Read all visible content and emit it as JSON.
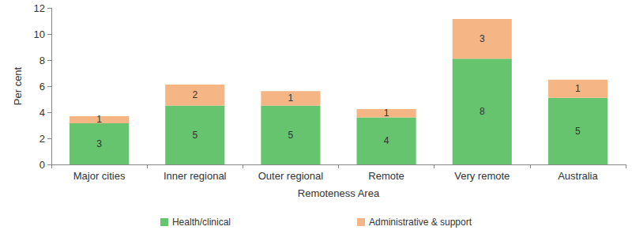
{
  "chart_data": {
    "type": "bar",
    "x_label": "Remoteness Area",
    "y_label": "Per cent",
    "categories": [
      "Major cities",
      "Inner regional",
      "Outer regional",
      "Remote",
      "Very remote",
      "Australia"
    ],
    "series": [
      {
        "name": "Health/clinical",
        "color": "#66c36e",
        "values": [
          3.15,
          4.52,
          4.52,
          3.6,
          8.1,
          5.1
        ],
        "value_labels": [
          "3",
          "5",
          "5",
          "4",
          "8",
          "5"
        ]
      },
      {
        "name": "Administrative & support",
        "color": "#f5b584",
        "values": [
          0.55,
          1.6,
          1.1,
          0.65,
          3.05,
          1.4
        ],
        "value_labels": [
          "1",
          "2",
          "1",
          "1",
          "3",
          "1"
        ]
      }
    ],
    "ylim": [
      0,
      12
    ],
    "yticks": [
      0,
      2,
      4,
      6,
      8,
      10,
      12
    ],
    "stacked": true,
    "data_labels": true,
    "legend": "bottom",
    "grid": false
  }
}
